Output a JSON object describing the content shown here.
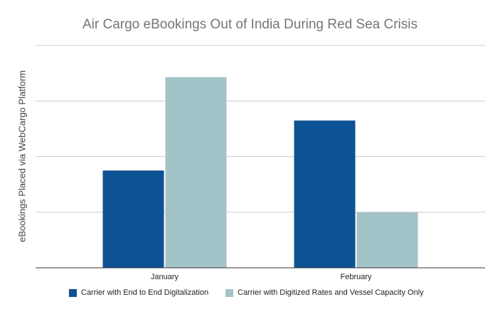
{
  "chart_data": {
    "type": "bar",
    "title": "Air Cargo eBookings Out of India During Red Sea Crisis",
    "xlabel": "",
    "ylabel": "eBookings Placed via WebCargo Platform",
    "categories": [
      "January",
      "February"
    ],
    "series": [
      {
        "name": "Carrier with End to End Digitalization",
        "color": "#0b5394",
        "values": [
          1.75,
          2.65
        ]
      },
      {
        "name": "Carrier with Digitized Rates and Vessel Capacity Only",
        "color": "#a2c4c9",
        "values": [
          3.43,
          1.0
        ]
      }
    ],
    "ylim": [
      0,
      4
    ],
    "y_ticks_labeled": false,
    "grid": true,
    "legend": "bottom"
  }
}
